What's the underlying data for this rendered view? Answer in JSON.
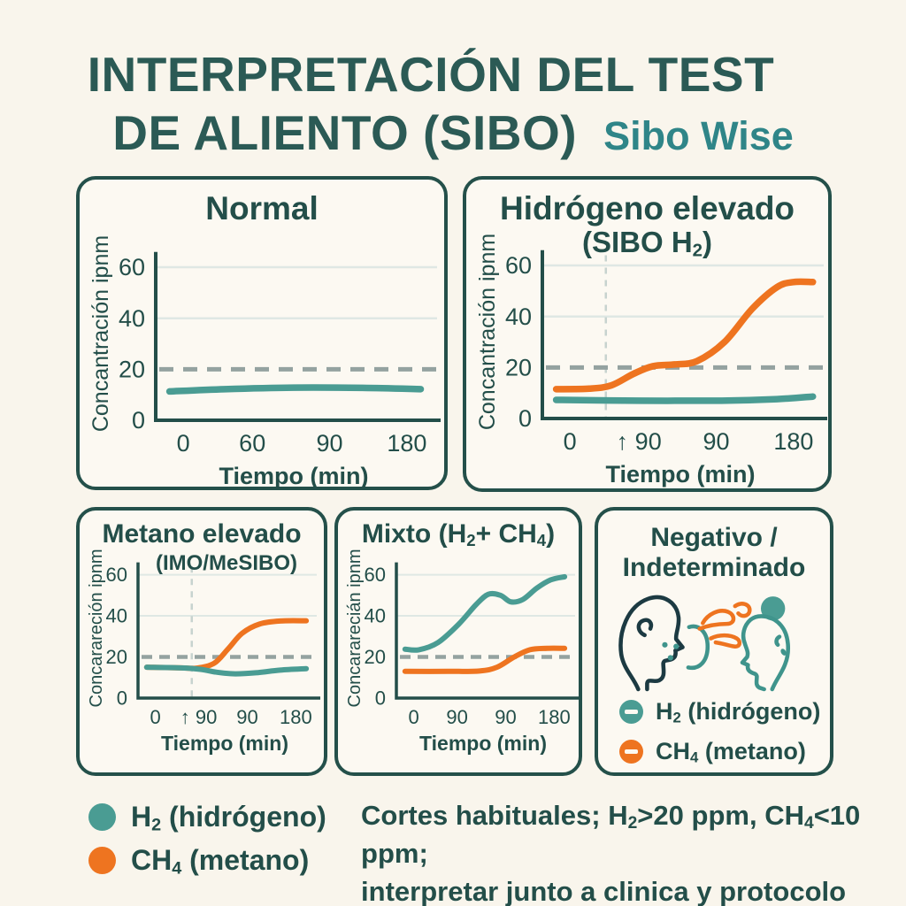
{
  "colors": {
    "background": "#f9f5ec",
    "panel_bg": "#fcf9f2",
    "ink": "#234e49",
    "title": "#2b5a55",
    "brand": "#2f8588",
    "teal": "#4a9c93",
    "orange": "#ee7420",
    "dark_head": "#1c3a42",
    "teal_head": "#3f948c",
    "threshold": "#94a2a0",
    "gridline": "#dfe8e4",
    "vline": "#c7d3cf"
  },
  "header": {
    "title_line1": "INTERPRETACIÓN DEL TEST",
    "title_line2": "DE ALIENTO (SIBO)",
    "brand": "Sibo Wise"
  },
  "negativo": {
    "title_line1": "Negativo /",
    "title_line2": "Indeterminado",
    "legend_h2": "H₂ (hidrógeno)",
    "legend_ch4": "CH₄ (metano)"
  },
  "legend": {
    "h2": "H₂ (hidrógeno)",
    "ch4": "CH₄ (metano)"
  },
  "footnote": {
    "line1": "Cortes habituales; H₂>20 ppm, CH₄<10 ppm;",
    "line2": "interpretar junto a clinica y protocolo"
  },
  "chart_data": [
    {
      "type": "line",
      "id": "normal",
      "title": "Normal",
      "subtitle": "",
      "ylabel": "Concantración ipnm",
      "xlabel": "Tiempo (min)",
      "ylim": [
        0,
        68
      ],
      "yticks": [
        60,
        40,
        20,
        0
      ],
      "xtick_labels": [
        "0",
        "60",
        "90",
        "180"
      ],
      "x_unit": "min",
      "gridlines": [
        60,
        40
      ],
      "threshold": 20,
      "vline": null,
      "legend_position": "none",
      "series": [
        {
          "name": "H2",
          "color": "teal",
          "points": [
            [
              0.05,
              11.3
            ],
            [
              0.25,
              12.2
            ],
            [
              0.5,
              12.8
            ],
            [
              0.75,
              12.7
            ],
            [
              0.96,
              12.2
            ]
          ]
        }
      ]
    },
    {
      "type": "line",
      "id": "hidrogeno-elevado",
      "title": "Hidrógeno elevado",
      "subtitle": "(SIBO H₂)",
      "ylabel": "Concantración ipnm",
      "xlabel": "Tiempo (min)",
      "ylim": [
        0,
        68
      ],
      "yticks": [
        60,
        40,
        20,
        0
      ],
      "xtick_labels": [
        "0",
        "↑ 90",
        "90",
        "180"
      ],
      "x_unit": "min",
      "gridlines": [
        60,
        40
      ],
      "threshold": 20,
      "vline": 0.23,
      "legend_position": "none",
      "series": [
        {
          "name": "CH4",
          "color": "orange",
          "points": [
            [
              0.05,
              11.5
            ],
            [
              0.17,
              11.7
            ],
            [
              0.25,
              13
            ],
            [
              0.33,
              17.5
            ],
            [
              0.4,
              20.5
            ],
            [
              0.48,
              21.2
            ],
            [
              0.56,
              22.5
            ],
            [
              0.66,
              30
            ],
            [
              0.76,
              43
            ],
            [
              0.85,
              51.5
            ],
            [
              0.91,
              53.5
            ],
            [
              0.98,
              53.5
            ]
          ]
        },
        {
          "name": "H2",
          "color": "teal",
          "points": [
            [
              0.05,
              7.3
            ],
            [
              0.35,
              7
            ],
            [
              0.65,
              7
            ],
            [
              0.85,
              7.6
            ],
            [
              0.98,
              8.6
            ]
          ]
        }
      ]
    },
    {
      "type": "line",
      "id": "metano-elevado",
      "title": "Metano elevado",
      "subtitle": "(IMO/MeSIBO)",
      "ylabel": "Concarareción ipnm",
      "xlabel": "Tiempo (min)",
      "ylim": [
        0,
        68
      ],
      "yticks": [
        60,
        40,
        20,
        0
      ],
      "xtick_labels": [
        "0",
        "↑ 90",
        "90",
        "180"
      ],
      "x_unit": "min",
      "gridlines": [
        60,
        40
      ],
      "threshold": 20,
      "vline": 0.31,
      "legend_position": "none",
      "series": [
        {
          "name": "CH4",
          "color": "orange",
          "points": [
            [
              0.05,
              15
            ],
            [
              0.25,
              14.7
            ],
            [
              0.34,
              14.6
            ],
            [
              0.44,
              17
            ],
            [
              0.52,
              24
            ],
            [
              0.6,
              31.5
            ],
            [
              0.7,
              36
            ],
            [
              0.82,
              37.5
            ],
            [
              0.97,
              37.6
            ]
          ]
        },
        {
          "name": "H2",
          "color": "teal",
          "points": [
            [
              0.05,
              15
            ],
            [
              0.25,
              14.7
            ],
            [
              0.36,
              14
            ],
            [
              0.46,
              12.5
            ],
            [
              0.56,
              11.8
            ],
            [
              0.68,
              12.3
            ],
            [
              0.82,
              13.6
            ],
            [
              0.97,
              14.3
            ]
          ]
        }
      ]
    },
    {
      "type": "line",
      "id": "mixto",
      "title": "Mixto (H₂+ CH₄)",
      "subtitle": "",
      "ylabel": "Concararecián ipnm",
      "xlabel": "Tiempo (min)",
      "ylim": [
        0,
        68
      ],
      "yticks": [
        60,
        40,
        20,
        0
      ],
      "xtick_labels": [
        "0",
        "90",
        "90",
        "180"
      ],
      "x_unit": "min",
      "gridlines": [
        60,
        40
      ],
      "threshold": 20,
      "vline": null,
      "legend_position": "none",
      "series": [
        {
          "name": "H2",
          "color": "teal",
          "points": [
            [
              0.05,
              23.8
            ],
            [
              0.13,
              23.5
            ],
            [
              0.24,
              27
            ],
            [
              0.36,
              36
            ],
            [
              0.46,
              45.5
            ],
            [
              0.53,
              50.5
            ],
            [
              0.6,
              50
            ],
            [
              0.66,
              46.8
            ],
            [
              0.73,
              48
            ],
            [
              0.81,
              53.5
            ],
            [
              0.89,
              57.5
            ],
            [
              0.97,
              59
            ]
          ]
        },
        {
          "name": "CH4",
          "color": "orange",
          "points": [
            [
              0.05,
              13
            ],
            [
              0.3,
              13
            ],
            [
              0.48,
              13.2
            ],
            [
              0.58,
              15
            ],
            [
              0.68,
              20
            ],
            [
              0.77,
              23.5
            ],
            [
              0.87,
              24.2
            ],
            [
              0.97,
              24.2
            ]
          ]
        }
      ]
    }
  ]
}
